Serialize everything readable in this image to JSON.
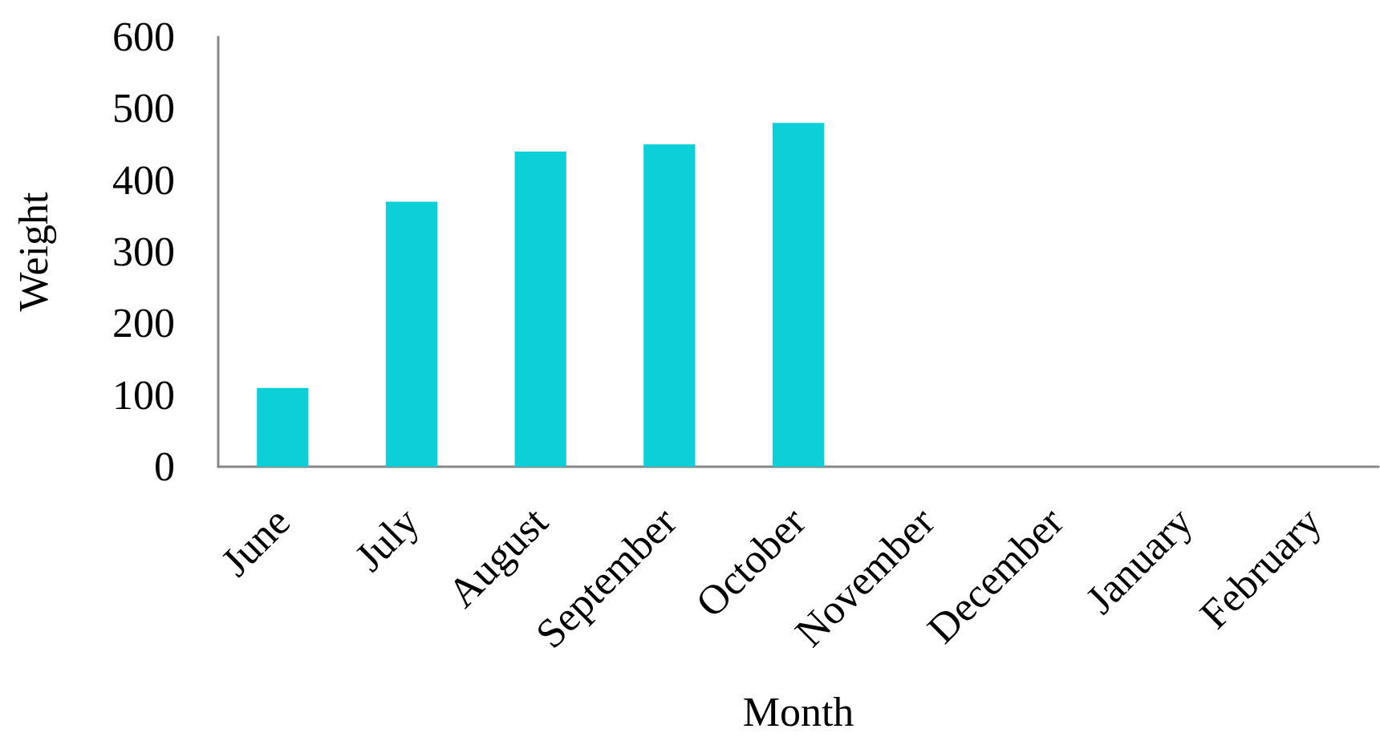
{
  "chart_data": {
    "type": "bar",
    "xlabel": "Month",
    "ylabel": "Weight",
    "categories": [
      "June",
      "July",
      "August",
      "September",
      "October",
      "November",
      "December",
      "January",
      "February"
    ],
    "values": [
      110,
      370,
      440,
      450,
      480,
      null,
      null,
      null,
      null
    ],
    "color": "#0ccfd8",
    "ylim": [
      0,
      600
    ],
    "yticks": [
      0,
      100,
      200,
      300,
      400,
      500,
      600
    ],
    "grid": false
  }
}
